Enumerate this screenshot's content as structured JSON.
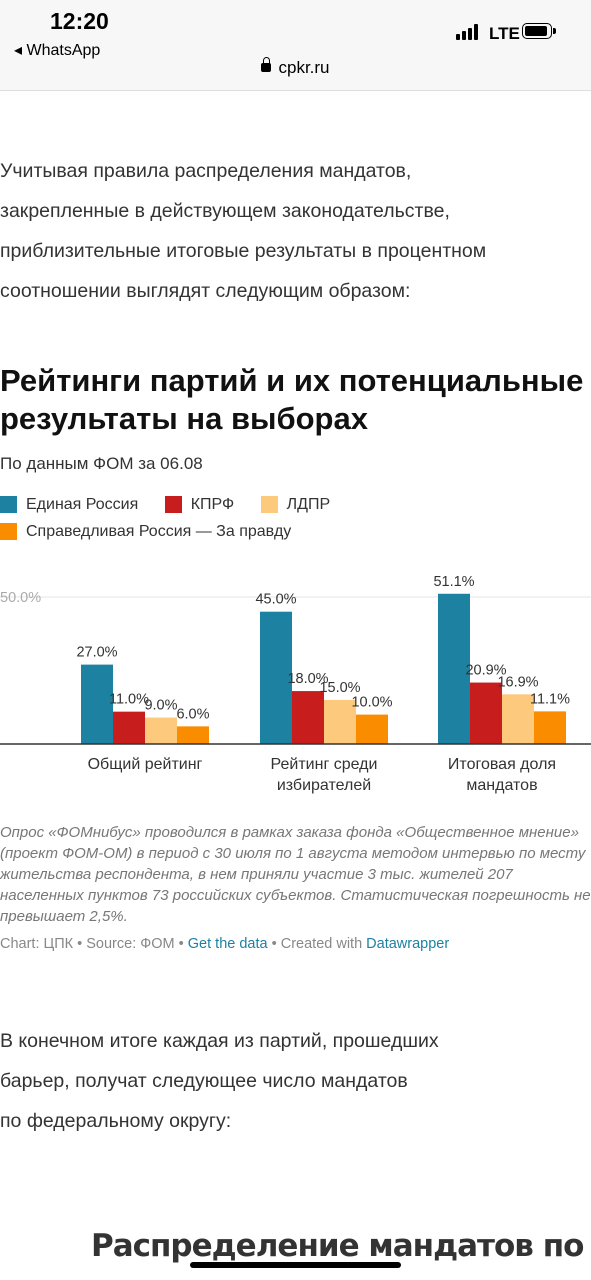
{
  "status": {
    "time": "12:20",
    "back_app": "◂ WhatsApp",
    "network": "LTE",
    "url": "cpkr.ru"
  },
  "article": {
    "intro_lines": [
      "Учитывая правила распределения мандатов,",
      "закрепленные в действующем законодательстве,",
      "приблизительные итоговые результаты в процентном",
      "соотношении выглядят следующим образом:"
    ],
    "after_lines": [
      "В конечном итоге каждая из партий, прошедших",
      "барьер, получат следующее число мандатов",
      "по федеральному округу:"
    ],
    "next_heading": "Распределение мандатов по"
  },
  "chart_data": {
    "type": "bar",
    "title": "Рейтинги партий и их потенциальные результаты на выборах",
    "subtitle": "По данным ФОМ за 06.08",
    "categories": [
      [
        "Общий рейтинг"
      ],
      [
        "Рейтинг среди",
        "избирателей"
      ],
      [
        "Итоговая доля",
        "мандатов"
      ]
    ],
    "series": [
      {
        "name": "Единая Россия",
        "color": "#1d81a2",
        "values": [
          27.0,
          45.0,
          51.1
        ],
        "labels": [
          "27.0%",
          "45.0%",
          "51.1%"
        ]
      },
      {
        "name": "КПРФ",
        "color": "#c71e1d",
        "values": [
          11.0,
          18.0,
          20.9
        ],
        "labels": [
          "11.0%",
          "18.0%",
          "20.9%"
        ]
      },
      {
        "name": "ЛДПР",
        "color": "#fdca7d",
        "values": [
          9.0,
          15.0,
          16.9
        ],
        "labels": [
          "9.0%",
          "15.0%",
          "16.9%"
        ]
      },
      {
        "name": "Справедливая Россия — За правду",
        "color": "#fa8c00",
        "values": [
          6.0,
          10.0,
          11.1
        ],
        "labels": [
          "6.0%",
          "10.0%",
          "11.1%"
        ]
      }
    ],
    "yticks": [
      {
        "value": 50,
        "label": "50.0%"
      }
    ],
    "ylim": [
      0,
      55
    ],
    "legend_position": "top",
    "note": "Опрос «ФОМнибус» проводился в рамках заказа фонда «Общественное мнение» (проект ФОМ-ОМ) в период с 30 июля по 1 августа методом интервью по месту жительства респондента, в нем приняли участие 3 тыс. жителей 207 населенных пунктов 73 российских субъектов. Статистическая погрешность не превышает 2,5%.",
    "source": {
      "chart_by": "Chart: ЦПК",
      "source": "Source: ФОМ",
      "get_data": "Get the data",
      "created_with": "Created with",
      "tool": "Datawrapper",
      "sep": " • "
    }
  }
}
